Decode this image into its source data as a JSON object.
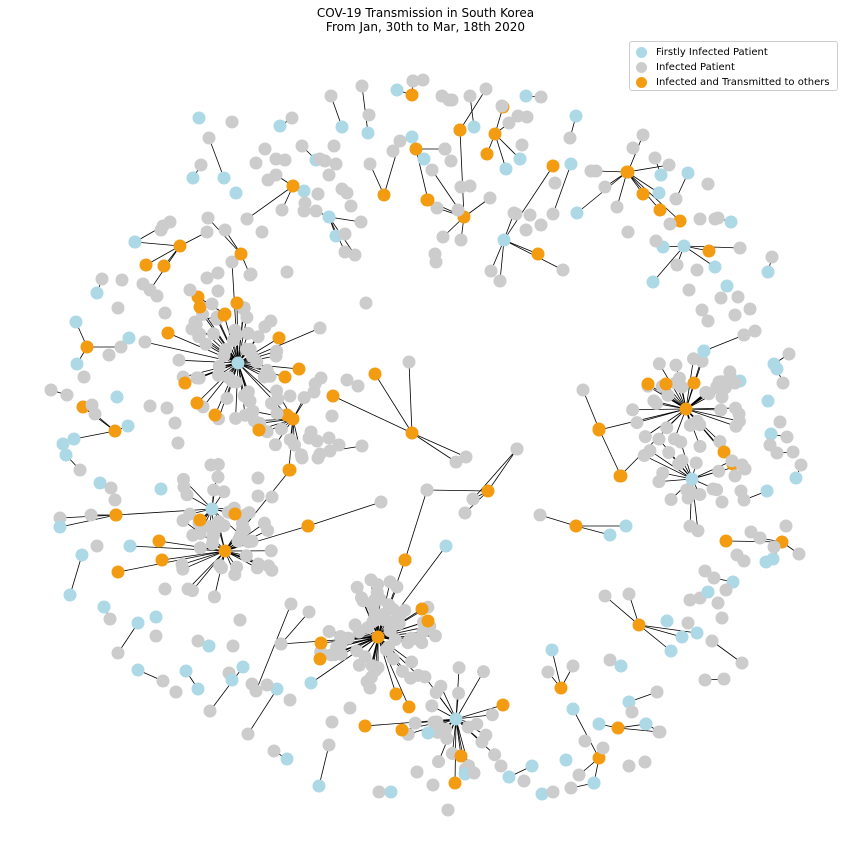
{
  "title": {
    "line1": "COV-19 Transmission in South Korea",
    "line2": "From Jan, 30th to Mar, 18th 2020"
  },
  "legend": [
    {
      "key": "first",
      "label": "Firstly Infected Patient",
      "color": "#add8e6"
    },
    {
      "key": "infected",
      "label": "Infected Patient",
      "color": "#cccccc"
    },
    {
      "key": "transmitter",
      "label": "Infected and Transmitted to others",
      "color": "#f39c12"
    }
  ],
  "colors": {
    "edge": "#000000",
    "first": "#add8e6",
    "infected": "#cccccc",
    "transmitter": "#f39c12"
  },
  "legend_position": "top-right"
}
